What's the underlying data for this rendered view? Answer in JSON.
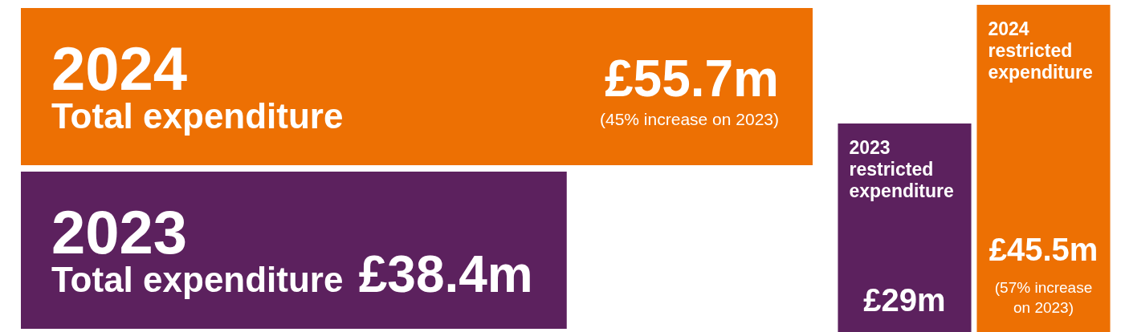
{
  "chart_data": [
    {
      "type": "bar",
      "orientation": "horizontal",
      "categories": [
        "2024\nTotal expenditure",
        "2023\nTotal expenditure"
      ],
      "values": [
        55.7,
        38.4
      ],
      "colors": [
        "#ed7003",
        "#5c215e"
      ],
      "value_labels": [
        "£55.7m",
        "£38.4m"
      ],
      "tick_labels": "y",
      "annotations": [
        "(45% increase on 2023)"
      ]
    },
    {
      "type": "bar",
      "categories": [
        "2023\nrestricted\nexpenditure",
        "2024\nrestricted\nexpenditure"
      ],
      "values": [
        29,
        45.5
      ],
      "colors": [
        "#5c215e",
        "#ed7003"
      ],
      "value_labels": [
        "£29m",
        "£45.5m"
      ],
      "tick_labels": "x",
      "annotations": [
        "(57% increase on 2023)"
      ]
    }
  ]
}
